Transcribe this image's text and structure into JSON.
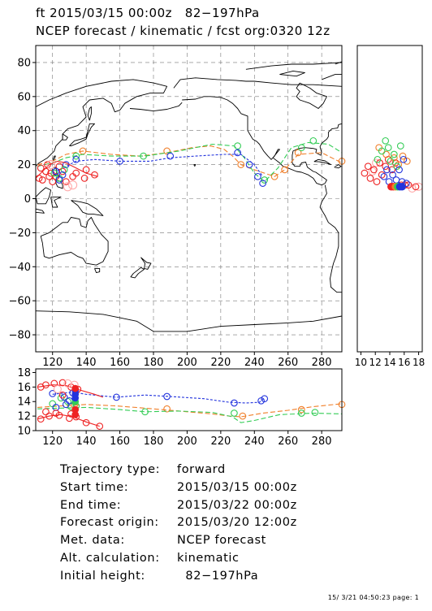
{
  "header": {
    "line1": "ft 2015/03/15 00:00z   82−197hPa",
    "line2": "NCEP forecast / kinematic / fcst org:0320 12z"
  },
  "colors": {
    "red": "#ee2222",
    "pink": "#ffaaaa",
    "orange": "#f07f2a",
    "green": "#33cc55",
    "blue": "#2233dd",
    "grid": "#777777",
    "coast": "#000000"
  },
  "chart_data": [
    {
      "type": "scatter",
      "panel": "map",
      "xlim": [
        110,
        292
      ],
      "ylim": [
        -90,
        90
      ],
      "xticks": [
        120,
        140,
        160,
        180,
        200,
        220,
        240,
        260,
        280
      ],
      "xtick_labels": [
        "120",
        "140",
        "160",
        "180",
        "200",
        "220",
        "240",
        "260",
        "280"
      ],
      "yticks": [
        -80,
        -60,
        -40,
        -20,
        0,
        20,
        40,
        60,
        80
      ],
      "ytick_labels": [
        "−80",
        "−60",
        "−40",
        "−20",
        "0",
        "20",
        "40",
        "60",
        "80"
      ],
      "grid": true,
      "series": [
        {
          "color": "orange",
          "dash": "6,3",
          "x": [
            111,
            120,
            128,
            138,
            155,
            172,
            188,
            203,
            214,
            222,
            227,
            232,
            237,
            246,
            252,
            258,
            266,
            280,
            292
          ],
          "y": [
            20,
            22,
            26,
            28,
            26,
            25,
            27,
            30,
            31,
            29,
            25,
            20,
            18,
            15,
            13,
            17,
            26,
            27,
            21
          ],
          "markers": [
            [
              138,
              28
            ],
            [
              188,
              28
            ],
            [
              232,
              20
            ],
            [
              252,
              13
            ],
            [
              258,
              17
            ],
            [
              266,
              27
            ],
            [
              292,
              22
            ]
          ]
        },
        {
          "color": "green",
          "dash": "6,3",
          "x": [
            111,
            120,
            128,
            138,
            155,
            175,
            195,
            215,
            228,
            234,
            240,
            246,
            254,
            262,
            272,
            284,
            292
          ],
          "y": [
            19,
            21,
            24,
            26,
            25,
            25,
            28,
            32,
            31,
            24,
            15,
            10,
            18,
            30,
            33,
            32,
            27
          ],
          "markers": [
            [
              134,
              25
            ],
            [
              174,
              25
            ],
            [
              230,
              31
            ],
            [
              246,
              11
            ],
            [
              268,
              30
            ],
            [
              275,
              34
            ]
          ]
        },
        {
          "color": "blue",
          "dash": "3,2",
          "x": [
            120,
            128,
            134,
            145,
            160,
            178,
            190,
            205,
            222,
            232,
            240,
            245
          ],
          "y": [
            15,
            19,
            22,
            23,
            22,
            22,
            24,
            25,
            26,
            26,
            20,
            13
          ],
          "markers": [
            [
              128,
              20
            ],
            [
              134,
              23
            ],
            [
              160,
              22
            ],
            [
              190,
              25
            ],
            [
              230,
              27
            ],
            [
              237,
              20
            ],
            [
              242,
              13
            ],
            [
              245,
              9
            ]
          ]
        },
        {
          "color": "red",
          "dash": "",
          "x": [
            110,
            114,
            118,
            123,
            128,
            134,
            140,
            147
          ],
          "y": [
            12,
            16,
            20,
            22,
            21,
            18,
            15,
            13
          ],
          "markers": [
            [
              112,
              12
            ],
            [
              113,
              18
            ],
            [
              117,
              20
            ],
            [
              119,
              15
            ],
            [
              122,
              13
            ],
            [
              126,
              16
            ],
            [
              134,
              15
            ],
            [
              140,
              17
            ],
            [
              145,
              14
            ]
          ]
        }
      ],
      "extra_markers": {
        "red": [
          [
            114,
            11
          ],
          [
            116,
            16
          ],
          [
            118,
            13
          ],
          [
            120,
            10
          ],
          [
            124,
            19
          ],
          [
            128,
            10
          ],
          [
            132,
            13
          ],
          [
            139,
            12
          ]
        ],
        "pink": [
          [
            119,
            20
          ],
          [
            129,
            7
          ],
          [
            132,
            8
          ]
        ],
        "green": [
          [
            121,
            15
          ],
          [
            124,
            12
          ],
          [
            127,
            17
          ]
        ],
        "blue": [
          [
            122,
            16
          ],
          [
            124,
            11
          ],
          [
            126,
            14
          ]
        ]
      }
    },
    {
      "type": "scatter",
      "panel": "side",
      "xlim": [
        9.5,
        18.5
      ],
      "ylim": [
        -90,
        90
      ],
      "xticks": [
        10,
        12,
        14,
        16,
        18
      ],
      "xtick_labels": [
        "10",
        "12",
        "14",
        "16",
        "18"
      ],
      "markers": {
        "red": [
          [
            10.5,
            15
          ],
          [
            11.0,
            19
          ],
          [
            11.3,
            12
          ],
          [
            11.8,
            17
          ],
          [
            12.2,
            10
          ],
          [
            12.6,
            21
          ],
          [
            12.9,
            14
          ],
          [
            13.4,
            19
          ],
          [
            13.8,
            23
          ],
          [
            14.3,
            17
          ],
          [
            14.8,
            21
          ],
          [
            15.6,
            8
          ],
          [
            16.1,
            8
          ],
          [
            16.6,
            8
          ],
          [
            17.6,
            7
          ]
        ],
        "orange": [
          [
            12.5,
            30
          ],
          [
            13.5,
            26
          ],
          [
            14.6,
            24
          ],
          [
            15.2,
            20
          ],
          [
            15.8,
            25
          ],
          [
            16.4,
            22
          ]
        ],
        "green": [
          [
            12.9,
            28
          ],
          [
            13.4,
            34
          ],
          [
            13.8,
            30
          ],
          [
            14.1,
            22
          ],
          [
            14.6,
            26
          ],
          [
            15.0,
            19
          ],
          [
            15.5,
            31
          ],
          [
            12.3,
            23
          ]
        ],
        "blue": [
          [
            13.2,
            13
          ],
          [
            13.6,
            17
          ],
          [
            13.9,
            10
          ],
          [
            14.4,
            14
          ],
          [
            14.9,
            11
          ],
          [
            15.3,
            17
          ],
          [
            15.9,
            23
          ],
          [
            15.7,
            10
          ],
          [
            16.3,
            9
          ]
        ],
        "pink": [
          [
            12.1,
            21
          ],
          [
            11.6,
            16
          ],
          [
            17.1,
            6
          ],
          [
            18.0,
            7
          ]
        ],
        "filled": [
          [
            "red",
            14.2,
            7
          ],
          [
            "red",
            14.5,
            7
          ],
          [
            "orange",
            14.8,
            7
          ],
          [
            "green",
            15.1,
            7
          ],
          [
            "blue",
            15.4,
            7
          ],
          [
            "blue",
            15.7,
            7
          ]
        ]
      }
    },
    {
      "type": "line",
      "panel": "altitude",
      "xlim": [
        110,
        292
      ],
      "ylim": [
        10,
        18.5
      ],
      "xticks": [
        120,
        140,
        160,
        180,
        200,
        220,
        240,
        260,
        280
      ],
      "xtick_labels": [
        "120",
        "140",
        "160",
        "180",
        "200",
        "220",
        "240",
        "260",
        "280"
      ],
      "yticks": [
        10,
        12,
        14,
        16,
        18
      ],
      "ytick_labels": [
        "10",
        "12",
        "14",
        "16",
        "18"
      ],
      "series": [
        {
          "color": "blue",
          "dash": "3,2",
          "x": [
            120,
            132,
            140,
            158,
            175,
            190,
            210,
            225,
            235,
            243,
            246
          ],
          "y": [
            15.0,
            15.3,
            15.0,
            14.6,
            14.9,
            14.7,
            14.4,
            13.9,
            13.8,
            13.9,
            14.5
          ],
          "markers": [
            [
              120,
              15.1
            ],
            [
              132,
              15.2
            ],
            [
              158,
              14.6
            ],
            [
              188,
              14.7
            ],
            [
              228,
              13.8
            ],
            [
              244,
              14.1
            ],
            [
              246,
              14.4
            ]
          ]
        },
        {
          "color": "orange",
          "dash": "6,3",
          "x": [
            111,
            125,
            140,
            158,
            180,
            200,
            215,
            225,
            232,
            245,
            260,
            275,
            292
          ],
          "y": [
            13.2,
            13.4,
            13.6,
            13.4,
            13.0,
            12.6,
            12.3,
            12.0,
            11.9,
            12.4,
            12.8,
            13.3,
            13.7
          ],
          "markers": [
            [
              133,
              13.5
            ],
            [
              188,
              13.0
            ],
            [
              233,
              12.0
            ],
            [
              268,
              12.9
            ],
            [
              292,
              13.6
            ]
          ]
        },
        {
          "color": "green",
          "dash": "6,3",
          "x": [
            111,
            125,
            140,
            160,
            175,
            195,
            215,
            227,
            232,
            240,
            255,
            275,
            292
          ],
          "y": [
            13.0,
            13.1,
            13.2,
            12.9,
            12.6,
            12.7,
            12.5,
            11.9,
            11.1,
            11.4,
            12.2,
            12.4,
            12.3
          ],
          "markers": [
            [
              134,
              13.4
            ],
            [
              175,
              12.6
            ],
            [
              228,
              12.4
            ],
            [
              268,
              12.4
            ],
            [
              276,
              12.5
            ]
          ]
        },
        {
          "color": "red",
          "dash": "",
          "x": [
            111,
            118,
            125,
            132,
            140,
            148
          ],
          "y": [
            11.6,
            12.0,
            12.2,
            11.9,
            11.2,
            10.6
          ],
          "markers": [
            [
              113,
              11.6
            ],
            [
              118,
              12.0
            ],
            [
              124,
              12.1
            ],
            [
              130,
              11.7
            ],
            [
              140,
              11.1
            ],
            [
              148,
              10.6
            ]
          ]
        },
        {
          "color": "red",
          "dash": "",
          "x": [
            111,
            120,
            128,
            136,
            145,
            150
          ],
          "y": [
            16.0,
            16.3,
            16.2,
            15.6,
            15.0,
            14.6
          ],
          "markers": [
            [
              113,
              16.0
            ],
            [
              116,
              16.3
            ],
            [
              121,
              16.5
            ],
            [
              126,
              16.6
            ],
            [
              131,
              16.0
            ],
            [
              135,
              15.7
            ]
          ]
        }
      ],
      "extra_markers": {
        "pink": [
          [
            129,
            16.5
          ],
          [
            133,
            16.3
          ],
          [
            123,
            15.7
          ]
        ],
        "green": [
          [
            120,
            13.7
          ],
          [
            125,
            14.5
          ],
          [
            129,
            14.0
          ],
          [
            131,
            13.3
          ]
        ],
        "blue": [
          [
            122,
            13.2
          ],
          [
            127,
            14.6
          ],
          [
            128,
            13.6
          ],
          [
            130,
            14.1
          ]
        ],
        "red": [
          [
            116,
            12.6
          ],
          [
            122,
            12.4
          ],
          [
            126,
            14.9
          ],
          [
            131,
            12.3
          ],
          [
            134,
            11.9
          ]
        ],
        "filled": [
          [
            "red",
            133.5,
            12.2
          ],
          [
            "red",
            133.5,
            12.9
          ],
          [
            "green",
            133.5,
            14.0
          ],
          [
            "blue",
            133.5,
            14.5
          ],
          [
            "blue",
            133.5,
            15.0
          ],
          [
            "blue",
            133.5,
            15.5
          ],
          [
            "red",
            133.5,
            15.8
          ]
        ]
      }
    }
  ],
  "info": {
    "rows": [
      {
        "label": "Trajectory type:",
        "value": "forward"
      },
      {
        "label": "Start time:",
        "value": "2015/03/15 00:00z"
      },
      {
        "label": "End time:",
        "value": "2015/03/22 00:00z"
      },
      {
        "label": "Forecast origin:",
        "value": "2015/03/20 12:00z"
      },
      {
        "label": "Met. data:",
        "value": "NCEP forecast"
      },
      {
        "label": "Alt. calculation:",
        "value": "kinematic"
      },
      {
        "label": "Initial height:",
        "value": "  82−197hPa"
      }
    ]
  },
  "footer": "15/ 3/21 04:50:23 page: 1"
}
